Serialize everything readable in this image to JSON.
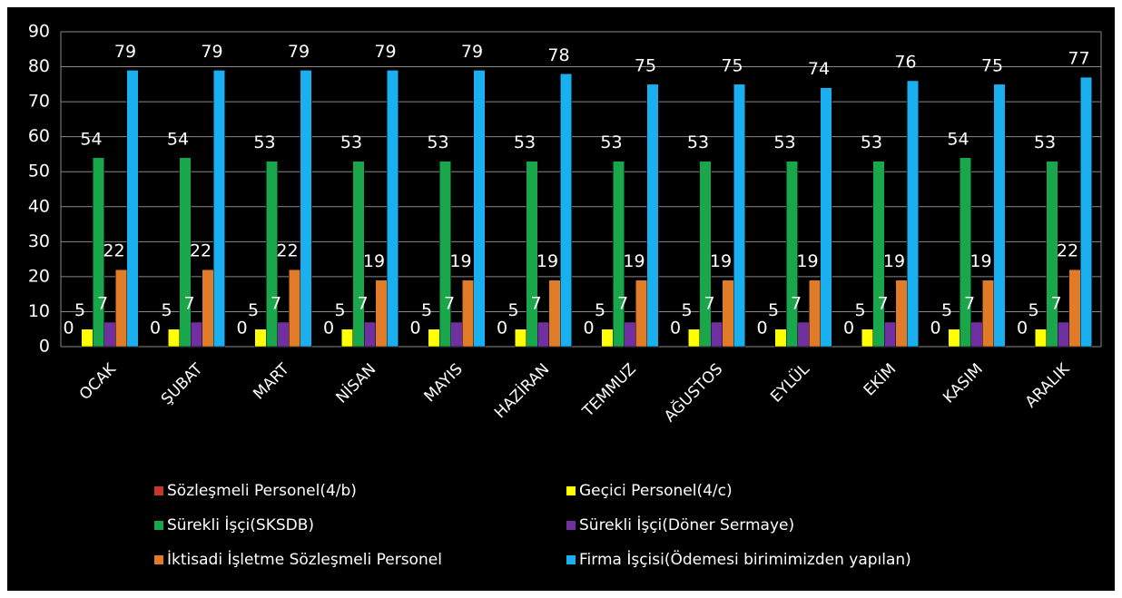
{
  "chart_data": {
    "type": "bar",
    "categories": [
      "OCAK",
      "ŞUBAT",
      "MART",
      "NİSAN",
      "MAYIS",
      "HAZİRAN",
      "TEMMUZ",
      "AĞUSTOS",
      "EYLÜL",
      "EKİM",
      "KASIM",
      "ARALIK"
    ],
    "series": [
      {
        "name": "Sözleşmeli Personel(4/b)",
        "color": "#c0392b",
        "values": [
          0,
          0,
          0,
          0,
          0,
          0,
          0,
          0,
          0,
          0,
          0,
          0
        ]
      },
      {
        "name": "Geçici Personel(4/c)",
        "color": "#ffff00",
        "values": [
          5,
          5,
          5,
          5,
          5,
          5,
          5,
          5,
          5,
          5,
          5,
          5
        ]
      },
      {
        "name": "Sürekli İşçi(SKSDB)",
        "color": "#1aa64a",
        "values": [
          54,
          54,
          53,
          53,
          53,
          53,
          53,
          53,
          53,
          53,
          54,
          53
        ]
      },
      {
        "name": "Sürekli İşçi(Döner Sermaye)",
        "color": "#7030a0",
        "values": [
          7,
          7,
          7,
          7,
          7,
          7,
          7,
          7,
          7,
          7,
          7,
          7
        ]
      },
      {
        "name": "İktisadi İşletme Sözleşmeli Personel",
        "color": "#e07b28",
        "values": [
          22,
          22,
          22,
          19,
          19,
          19,
          19,
          19,
          19,
          19,
          19,
          22
        ]
      },
      {
        "name": "Firma İşçisi(Ödemesi birimimizden yapılan)",
        "color": "#1ab0f0",
        "values": [
          79,
          79,
          79,
          79,
          79,
          78,
          75,
          75,
          74,
          76,
          75,
          77
        ]
      }
    ],
    "ylim": [
      0,
      90
    ],
    "yticks": [
      0,
      10,
      20,
      30,
      40,
      50,
      60,
      70,
      80,
      90
    ],
    "grid": true
  }
}
